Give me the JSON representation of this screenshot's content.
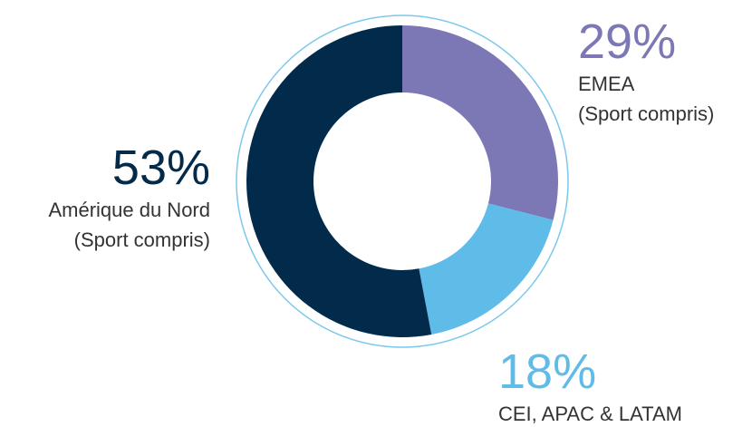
{
  "chart_data": {
    "type": "pie",
    "categories": [
      [
        "EMEA",
        "(Sport compris)"
      ],
      [
        "CEI, APAC & LATAM"
      ],
      [
        "Amérique du Nord",
        "(Sport compris)"
      ]
    ],
    "values": [
      29,
      18,
      53
    ],
    "value_labels": [
      "29%",
      "18%",
      "53%"
    ],
    "colors": [
      "#7b78b5",
      "#5fbbe8",
      "#022b4b"
    ]
  }
}
